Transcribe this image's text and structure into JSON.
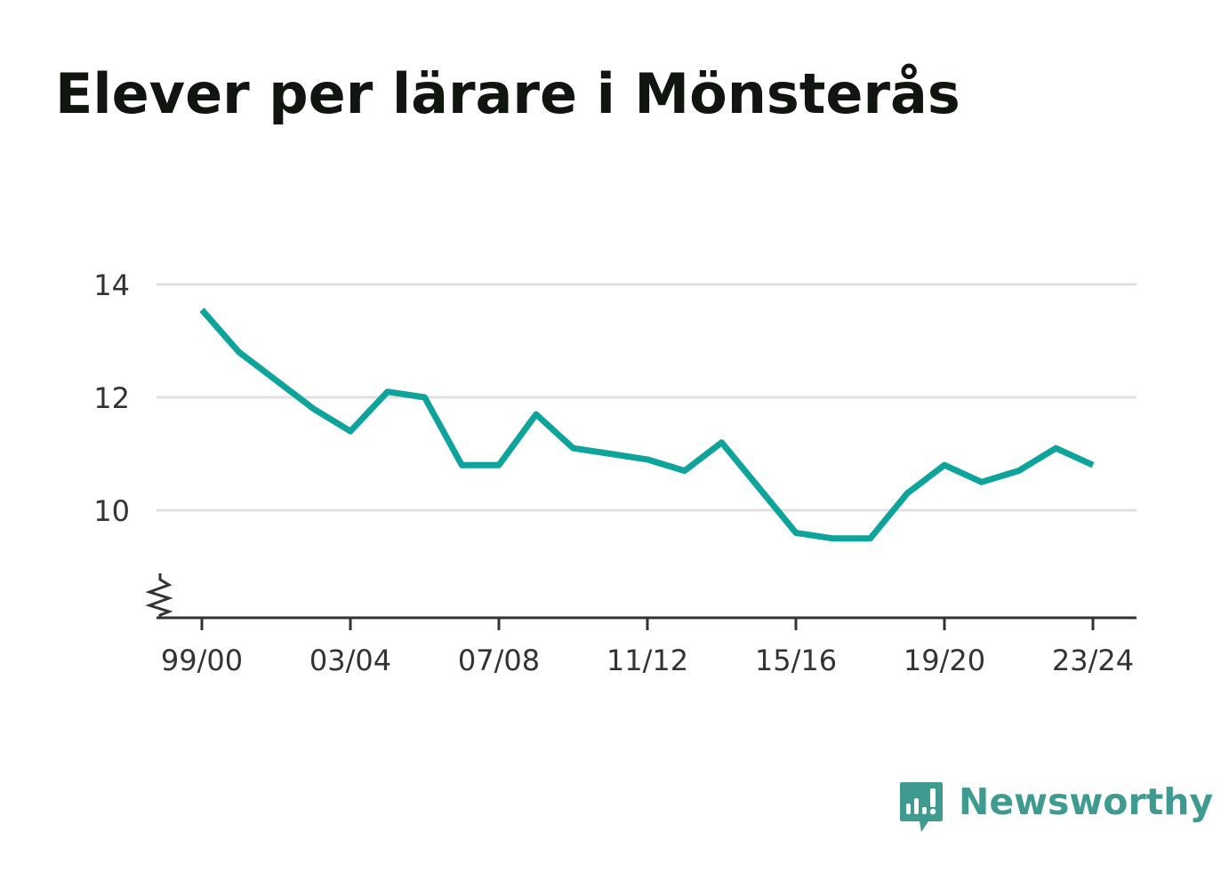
{
  "chart_data": {
    "type": "line",
    "title": "Elever per lärare i Mönsterås",
    "xlabel": "",
    "ylabel": "",
    "x": [
      "99/00",
      "00/01",
      "01/02",
      "02/03",
      "03/04",
      "04/05",
      "05/06",
      "06/07",
      "07/08",
      "08/09",
      "09/10",
      "10/11",
      "11/12",
      "12/13",
      "13/14",
      "14/15",
      "15/16",
      "16/17",
      "17/18",
      "18/19",
      "19/20",
      "20/21",
      "21/22",
      "22/23",
      "23/24"
    ],
    "x_tick_labels": [
      "99/00",
      "03/04",
      "07/08",
      "11/12",
      "15/16",
      "19/20",
      "23/24"
    ],
    "y_ticks": [
      10,
      12,
      14
    ],
    "ylim": [
      8.1,
      14.05
    ],
    "y_axis_break": true,
    "grid": "horizontal",
    "series": [
      {
        "values": [
          13.55,
          12.8,
          12.3,
          11.8,
          11.4,
          12.1,
          12.0,
          10.8,
          10.8,
          11.7,
          11.1,
          11.0,
          10.9,
          10.7,
          11.2,
          10.4,
          9.6,
          9.5,
          9.5,
          10.3,
          10.8,
          10.5,
          10.7,
          11.1,
          10.8
        ],
        "color": "#0ea39b"
      }
    ]
  },
  "colors": {
    "line": "#0ea39b",
    "grid": "#e0e0e0",
    "axis": "#333333",
    "brand": "#3f9a90"
  },
  "brand": {
    "name": "Newsworthy",
    "icon": "newsworthy-logo-icon"
  }
}
